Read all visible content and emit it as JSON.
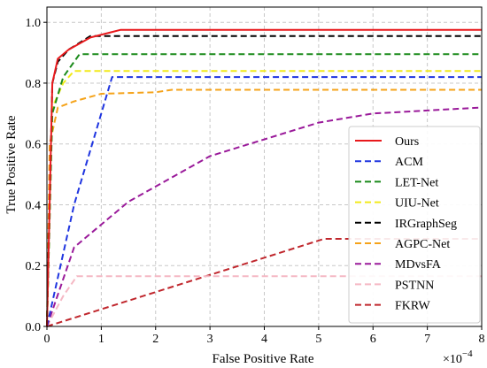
{
  "chart_data": {
    "type": "line",
    "xlabel": "False Positive Rate",
    "ylabel": "True Positive Rate",
    "x_multiplier": "×10",
    "x_exponent": "−4",
    "xlim": [
      0,
      8
    ],
    "ylim": [
      0,
      1.05
    ],
    "xticks": [
      "0",
      "1",
      "2",
      "3",
      "4",
      "5",
      "6",
      "7",
      "8"
    ],
    "yticks": [
      "0.0",
      "0.2",
      "0.4",
      "0.6",
      "0.8",
      "1.0"
    ],
    "grid": true,
    "legend_position": "lower-right",
    "series": [
      {
        "name": "Ours",
        "color": "#e8191c",
        "dash": "solid",
        "points": [
          [
            0,
            0
          ],
          [
            0.1,
            0.8
          ],
          [
            0.2,
            0.88
          ],
          [
            0.4,
            0.91
          ],
          [
            0.8,
            0.95
          ],
          [
            1.35,
            0.975
          ],
          [
            8,
            0.975
          ]
        ]
      },
      {
        "name": "ACM",
        "color": "#1f35e0",
        "dash": "dashed",
        "points": [
          [
            0,
            0
          ],
          [
            0.5,
            0.4
          ],
          [
            1.2,
            0.82
          ],
          [
            8,
            0.82
          ]
        ]
      },
      {
        "name": "LET-Net",
        "color": "#1a8a1a",
        "dash": "dashed",
        "points": [
          [
            0,
            0
          ],
          [
            0.1,
            0.7
          ],
          [
            0.3,
            0.82
          ],
          [
            0.6,
            0.895
          ],
          [
            8,
            0.895
          ]
        ]
      },
      {
        "name": "UIU-Net",
        "color": "#f2ea1a",
        "dash": "dashed",
        "points": [
          [
            0,
            0
          ],
          [
            0.1,
            0.72
          ],
          [
            0.3,
            0.8
          ],
          [
            0.5,
            0.84
          ],
          [
            8,
            0.84
          ]
        ]
      },
      {
        "name": "IRGraphSeg",
        "color": "#000000",
        "dash": "dashed",
        "points": [
          [
            0,
            0
          ],
          [
            0.1,
            0.8
          ],
          [
            0.2,
            0.87
          ],
          [
            0.4,
            0.91
          ],
          [
            0.8,
            0.955
          ],
          [
            8,
            0.955
          ]
        ]
      },
      {
        "name": "AGPC-Net",
        "color": "#f5a31a",
        "dash": "dashed",
        "points": [
          [
            0,
            0
          ],
          [
            0.05,
            0.6
          ],
          [
            0.2,
            0.72
          ],
          [
            0.5,
            0.74
          ],
          [
            1.0,
            0.765
          ],
          [
            2.0,
            0.77
          ],
          [
            2.3,
            0.778
          ],
          [
            8,
            0.778
          ]
        ]
      },
      {
        "name": "MDvsFA",
        "color": "#9a1a9a",
        "dash": "dashed",
        "points": [
          [
            0,
            0
          ],
          [
            0.5,
            0.26
          ],
          [
            1.5,
            0.41
          ],
          [
            3,
            0.56
          ],
          [
            5,
            0.67
          ],
          [
            6,
            0.7
          ],
          [
            8,
            0.72
          ]
        ]
      },
      {
        "name": "PSTNN",
        "color": "#f5b8c4",
        "dash": "dashed",
        "points": [
          [
            0,
            0
          ],
          [
            0.3,
            0.1
          ],
          [
            0.55,
            0.165
          ],
          [
            8,
            0.165
          ]
        ]
      },
      {
        "name": "FKRW",
        "color": "#c0272d",
        "dash": "dashed",
        "points": [
          [
            0,
            0
          ],
          [
            5.1,
            0.288
          ],
          [
            8,
            0.288
          ]
        ]
      }
    ]
  }
}
